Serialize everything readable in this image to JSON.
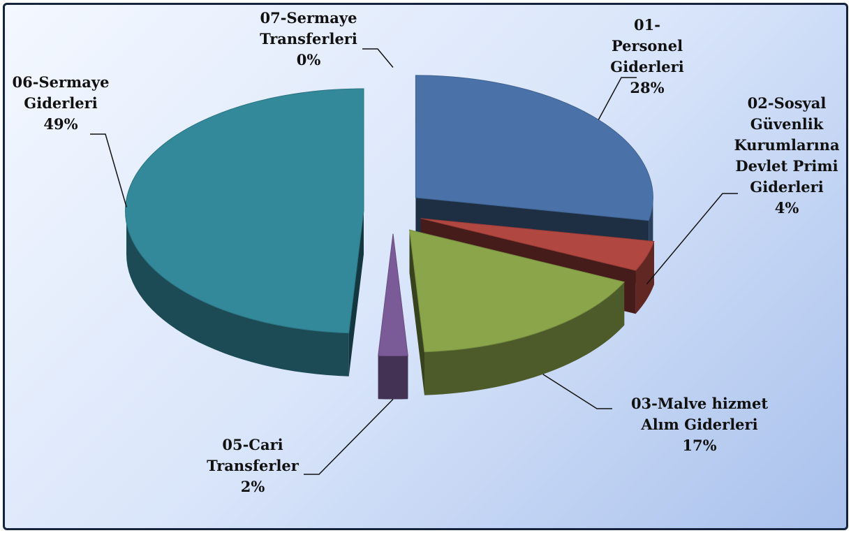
{
  "chart_data": {
    "type": "pie",
    "categories": [
      "01-Personel Giderleri",
      "02-Sosyal Güvenlik Kurumlarına Devlet Primi Giderleri",
      "03-Malve hizmet Alım Giderleri",
      "05-Cari Transferler",
      "06-Sermaye Giderleri",
      "07-Sermaye Transferleri"
    ],
    "values": [
      28,
      4,
      17,
      2,
      49,
      0
    ],
    "value_labels": [
      "28%",
      "4%",
      "17%",
      "2%",
      "49%",
      "0%"
    ],
    "colors": [
      "#4a72a8",
      "#b04740",
      "#8aa54a",
      "#7b5a98",
      "#33889a",
      "#d08a3a"
    ]
  }
}
